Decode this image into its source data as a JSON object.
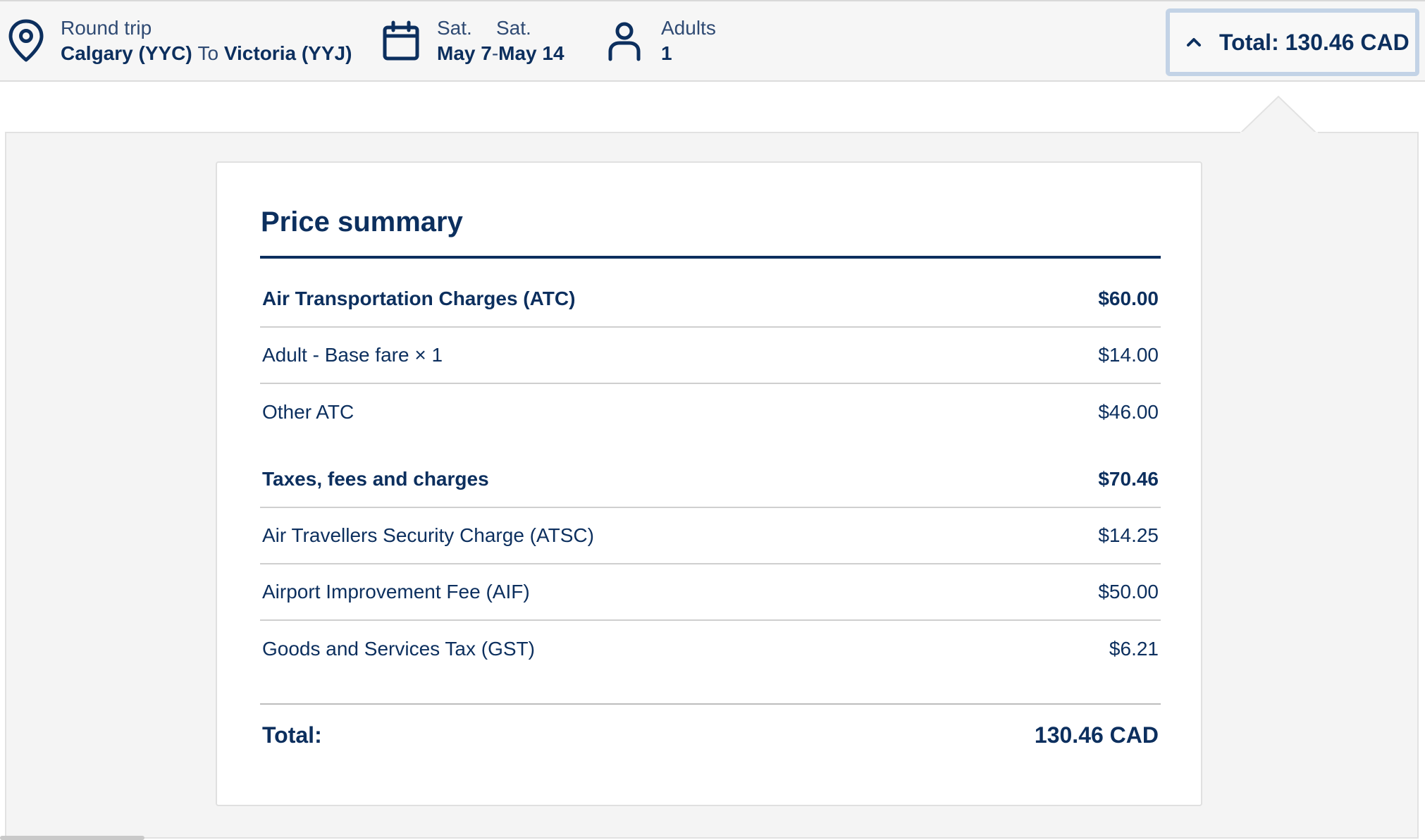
{
  "header": {
    "trip": {
      "type": "Round trip",
      "origin": "Calgary (YYC)",
      "connector": "To",
      "destination": "Victoria (YYJ)"
    },
    "dates": {
      "depart_day": "Sat.",
      "return_day": "Sat.",
      "depart_date": "May 7",
      "separator": "-",
      "return_date": "May 14"
    },
    "passengers": {
      "label": "Adults",
      "count": "1"
    },
    "total_button": {
      "label": "Total: 130.46 CAD"
    }
  },
  "price_summary": {
    "title": "Price summary",
    "sections": [
      {
        "heading": "Air Transportation Charges (ATC)",
        "amount": "$60.00",
        "items": [
          {
            "label": "Adult - Base fare × 1",
            "amount": "$14.00"
          },
          {
            "label": "Other ATC",
            "amount": "$46.00"
          }
        ]
      },
      {
        "heading": "Taxes, fees and charges",
        "amount": "$70.46",
        "items": [
          {
            "label": "Air Travellers Security Charge (ATSC)",
            "amount": "$14.25"
          },
          {
            "label": "Airport Improvement Fee (AIF)",
            "amount": "$50.00"
          },
          {
            "label": "Goods and Services Tax (GST)",
            "amount": "$6.21"
          }
        ]
      }
    ],
    "total_label": "Total:",
    "total_amount": "130.46 CAD"
  },
  "icons": {
    "location": "location-pin-icon",
    "calendar": "calendar-icon",
    "person": "person-icon",
    "chevron": "chevron-up-icon"
  },
  "colors": {
    "primary": "#0c2f5e",
    "panel_bg": "#f4f4f4",
    "button_border": "#c3d3e6"
  }
}
